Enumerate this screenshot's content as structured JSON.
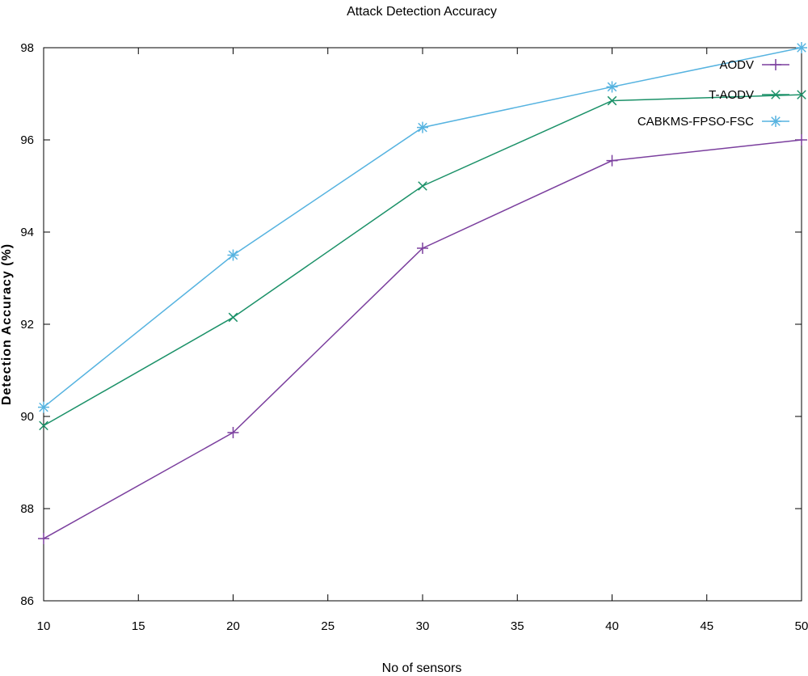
{
  "chart_data": {
    "type": "line",
    "title": "Attack Detection Accuracy",
    "xlabel": "No of sensors",
    "ylabel": "Detection Accuracy (%)",
    "x": [
      10,
      20,
      30,
      40,
      50
    ],
    "xlim": [
      10,
      50
    ],
    "ylim": [
      86,
      98
    ],
    "xticks": [
      10,
      15,
      20,
      25,
      30,
      35,
      40,
      45,
      50
    ],
    "yticks": [
      86,
      88,
      90,
      92,
      94,
      96,
      98
    ],
    "grid": false,
    "legend_position": "top-right",
    "series": [
      {
        "name": "AODV",
        "values": [
          87.35,
          89.65,
          93.65,
          95.55,
          96.0
        ],
        "color": "#7b3f9e",
        "marker": "plus"
      },
      {
        "name": "T-AODV",
        "values": [
          89.8,
          92.15,
          95.0,
          96.85,
          96.98
        ],
        "color": "#1b9168",
        "marker": "cross"
      },
      {
        "name": "CABKMS-FPSO-FSC",
        "values": [
          90.2,
          93.5,
          96.27,
          97.15,
          98.0
        ],
        "color": "#56b3e0",
        "marker": "star"
      }
    ]
  }
}
